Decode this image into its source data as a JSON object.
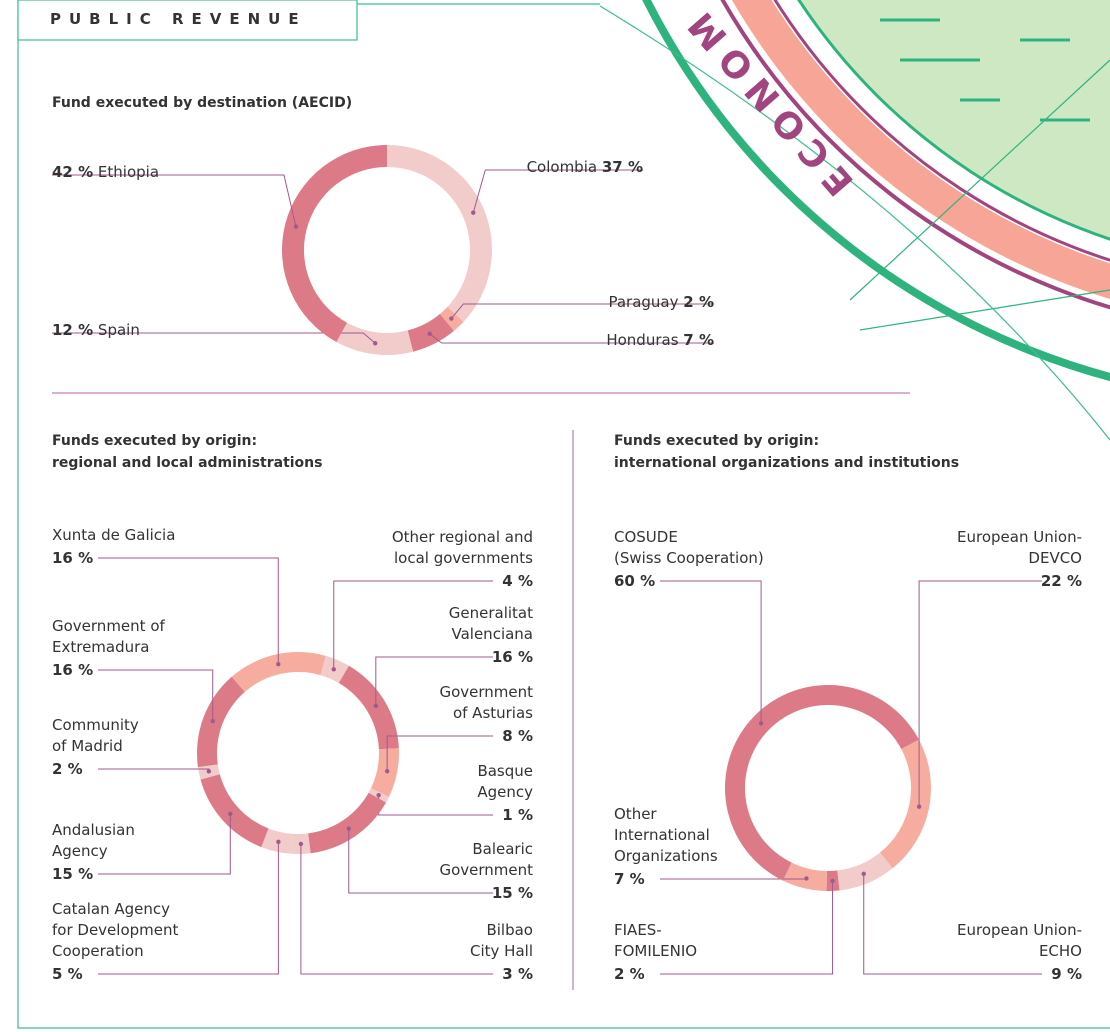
{
  "header": {
    "title": "PUBLIC REVENUE",
    "decoration": "ECONOM"
  },
  "chart_data": [
    {
      "type": "donut",
      "title": "Fund executed by destination (AECID)",
      "categories": [
        "Colombia",
        "Paraguay",
        "Honduras",
        "Spain",
        "Ethiopia"
      ],
      "values": [
        37,
        2,
        7,
        12,
        42
      ],
      "value_labels": [
        "37 %",
        "2 %",
        "7 %",
        "12 %",
        "42 %"
      ],
      "colors": [
        "#f2cbcb",
        "#f6ada0",
        "#dc7b87",
        "#f2cbcb",
        "#dc7b87"
      ]
    },
    {
      "type": "donut",
      "title": "Funds executed by origin:\nregional and local administrations",
      "categories": [
        "Other regional and\nlocal governments",
        "Generalitat\nValenciana",
        "Government\nof Asturias",
        "Basque\nAgency",
        "Balearic\nGovernment",
        "Bilbao\nCity Hall",
        "Catalan Agency\nfor Development\nCooperation",
        "Andalusian\nAgency",
        "Community\nof Madrid",
        "Government of\nExtremadura",
        "Xunta de Galicia"
      ],
      "values": [
        4,
        16,
        8,
        1,
        15,
        3,
        5,
        15,
        2,
        16,
        16
      ],
      "value_labels": [
        "4 %",
        "16 %",
        "8 %",
        "1 %",
        "15 %",
        "3 %",
        "5 %",
        "15 %",
        "2 %",
        "16 %",
        "16 %"
      ],
      "colors": [
        "#f2cbcb",
        "#dc7b87",
        "#f6ada0",
        "#f2cbcb",
        "#dc7b87",
        "#f2cbcb",
        "#f2cbcb",
        "#dc7b87",
        "#f2cbcb",
        "#dc7b87",
        "#f6ada0"
      ]
    },
    {
      "type": "donut",
      "title": "Funds executed by origin:\ninternational organizations and institutions",
      "categories": [
        "European Union-\nDEVCO",
        "European Union-\nECHO",
        "FIAES-\nFOMILENIO",
        "Other\nInternational\nOrganizations",
        "COSUDE\n(Swiss Cooperation)"
      ],
      "values": [
        22,
        9,
        2,
        7,
        60
      ],
      "value_labels": [
        "22 %",
        "9 %",
        "2 %",
        "7 %",
        "60 %"
      ],
      "colors": [
        "#f6ada0",
        "#f2cbcb",
        "#dc7b87",
        "#f6ada0",
        "#dc7b87"
      ]
    }
  ]
}
